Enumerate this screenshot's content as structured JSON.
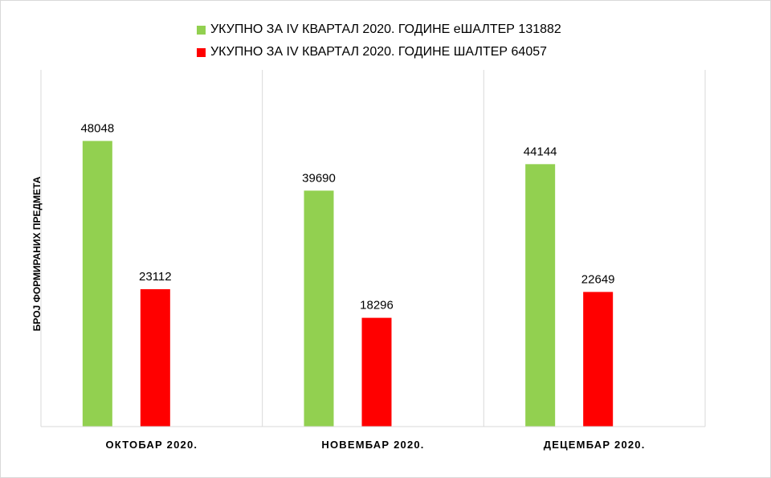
{
  "chart_data": {
    "type": "bar",
    "title": "",
    "xlabel": "",
    "ylabel": "БРОЈ ФОРМИРАНИХ ПРЕДМЕТА",
    "categories": [
      "ОКТОБАР 2020.",
      "НОВЕМБАР 2020.",
      "ДЕЦЕМБАР 2020."
    ],
    "ylim": [
      0,
      60000
    ],
    "grid": "vertical",
    "legend_position": "top",
    "series": [
      {
        "name": "УКУПНО ЗА IV КВАРТАЛ 2020. ГОДИНЕ еШАЛТЕР 131882",
        "color": "#92d050",
        "values": [
          48048,
          39690,
          44144
        ]
      },
      {
        "name": "УКУПНО ЗА IV КВАРТАЛ 2020. ГОДИНЕ ШАЛТЕР 64057",
        "color": "#ff0000",
        "values": [
          23112,
          18296,
          22649
        ]
      }
    ]
  }
}
